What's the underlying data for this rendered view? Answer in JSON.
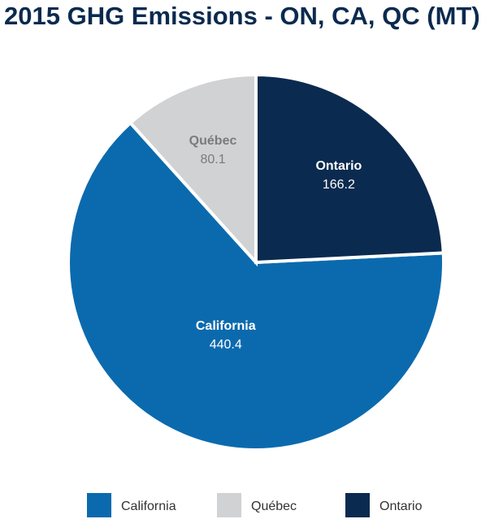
{
  "chart_data": {
    "type": "pie",
    "title": "2015 GHG Emissions - ON, CA, QC (MT)",
    "categories": [
      "California",
      "Québec",
      "Ontario"
    ],
    "values": [
      440.4,
      80.1,
      166.2
    ],
    "colors": [
      "#0b6aae",
      "#d1d2d4",
      "#0b2a4f"
    ],
    "label_colors": [
      "#ffffff",
      "#7b7b7b",
      "#ffffff"
    ]
  }
}
